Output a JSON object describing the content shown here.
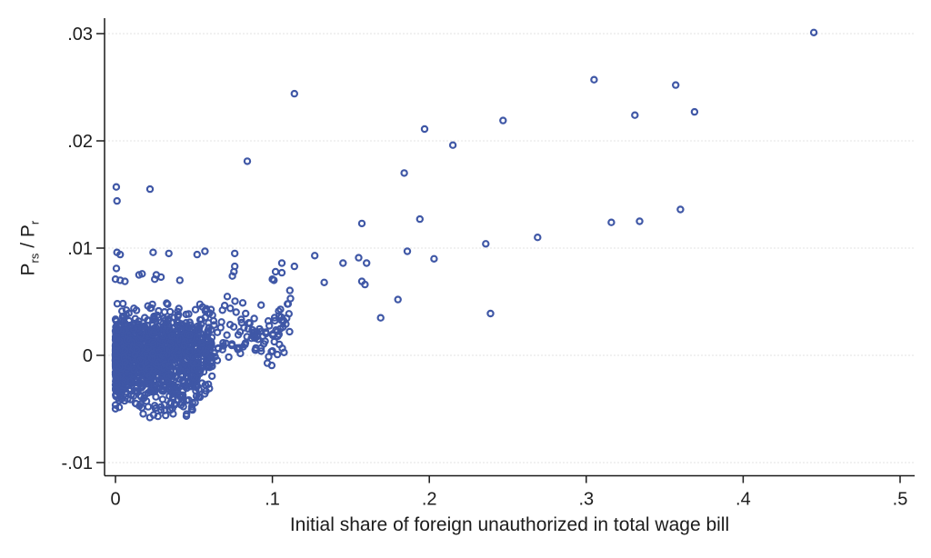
{
  "chart_data": {
    "type": "scatter",
    "title": "",
    "xlabel": "Initial share of foreign unauthorized in total wage bill",
    "ylabel": "P_rs / P_r",
    "ylabel_parts": {
      "p1": "P",
      "sub1": "rs",
      "mid": " / P",
      "sub2": "r"
    },
    "x_ticks": {
      "values": [
        0,
        0.1,
        0.2,
        0.3,
        0.4,
        0.5
      ],
      "labels": [
        "0",
        ".1",
        ".2",
        ".3",
        ".4",
        ".5"
      ]
    },
    "y_ticks": {
      "values": [
        -0.01,
        0,
        0.01,
        0.02,
        0.03
      ],
      "labels": [
        "-.01",
        "0",
        ".01",
        ".02",
        ".03"
      ]
    },
    "xlim": [
      -0.007,
      0.51
    ],
    "ylim": [
      -0.0112,
      0.0314
    ],
    "grid": true,
    "legend": "none",
    "marker": {
      "shape": "hollow-circle",
      "color": "#3f57a6",
      "radius": 3.1,
      "stroke_width": 2.2
    },
    "grid_color": "#e3e3e3",
    "axis_color": "#1a1a1a",
    "text_color": "#1c1c1c",
    "outlier_points": [
      [
        0.445,
        0.0301
      ],
      [
        0.305,
        0.0257
      ],
      [
        0.357,
        0.0252
      ],
      [
        0.331,
        0.0224
      ],
      [
        0.369,
        0.0227
      ],
      [
        0.114,
        0.0244
      ],
      [
        0.247,
        0.0219
      ],
      [
        0.197,
        0.0211
      ],
      [
        0.215,
        0.0196
      ],
      [
        0.084,
        0.0181
      ],
      [
        0.184,
        0.017
      ],
      [
        0.0005,
        0.0157
      ],
      [
        0.022,
        0.0155
      ],
      [
        0.001,
        0.0144
      ],
      [
        0.36,
        0.0136
      ],
      [
        0.316,
        0.0124
      ],
      [
        0.334,
        0.0125
      ],
      [
        0.194,
        0.0127
      ],
      [
        0.157,
        0.0123
      ],
      [
        0.269,
        0.011
      ],
      [
        0.236,
        0.0104
      ],
      [
        0.186,
        0.0097
      ],
      [
        0.203,
        0.009
      ],
      [
        0.001,
        0.0096
      ],
      [
        0.003,
        0.0094
      ],
      [
        0.024,
        0.0096
      ],
      [
        0.034,
        0.0095
      ],
      [
        0.052,
        0.0094
      ],
      [
        0.057,
        0.0097
      ],
      [
        0.076,
        0.0095
      ],
      [
        0.127,
        0.0093
      ],
      [
        0.145,
        0.0086
      ],
      [
        0.155,
        0.0091
      ],
      [
        0.16,
        0.0086
      ],
      [
        0.114,
        0.0083
      ],
      [
        0.106,
        0.0086
      ],
      [
        0.102,
        0.0078
      ],
      [
        0.106,
        0.0077
      ],
      [
        0.1,
        0.0071
      ],
      [
        0.101,
        0.007
      ],
      [
        0.133,
        0.0068
      ],
      [
        0.157,
        0.0069
      ],
      [
        0.159,
        0.0066
      ],
      [
        0.18,
        0.0052
      ],
      [
        0.169,
        0.0035
      ],
      [
        0.239,
        0.0039
      ],
      [
        0.0006,
        0.0081
      ],
      [
        0.0,
        0.0071
      ],
      [
        0.003,
        0.007
      ],
      [
        0.006,
        0.0069
      ],
      [
        0.015,
        0.0075
      ],
      [
        0.017,
        0.0076
      ],
      [
        0.025,
        0.0071
      ],
      [
        0.026,
        0.0075
      ],
      [
        0.029,
        0.0073
      ],
      [
        0.041,
        0.007
      ],
      [
        0.076,
        0.0083
      ],
      [
        0.0755,
        0.0078
      ],
      [
        0.0745,
        0.0074
      ],
      [
        0.11,
        0.0048
      ],
      [
        0.089,
        0.0016
      ],
      [
        0.0825,
        0.001
      ],
      [
        0.079,
        0.0007
      ],
      [
        0.029,
        -0.0051
      ],
      [
        0.032,
        -0.0056
      ],
      [
        0.035,
        -0.0051
      ],
      [
        0.042,
        -0.0044
      ],
      [
        0.026,
        -0.0049
      ]
    ],
    "dense_cluster": {
      "note": "Dense unreadable mass of ~1500 overlapping hollow markers near the origin; approximated procedurally with a seeded generator.",
      "seed": 42,
      "components": [
        {
          "count": 1150,
          "x_base": 0.0,
          "x_scale": 0.062,
          "x_power": 2.0,
          "y_mean": -0.0004,
          "y_slope": 0.012,
          "y_sd": 0.0019,
          "y_min": -0.0058,
          "y_max": 0.0052
        },
        {
          "count": 230,
          "x_base": 0.02,
          "x_scale": 0.092,
          "x_power": 1.4,
          "y_mean": 0.0003,
          "y_slope": 0.018,
          "y_sd": 0.0017,
          "y_min": -0.0038,
          "y_max": 0.0063
        },
        {
          "count": 70,
          "x_base": 0.012,
          "x_scale": 0.042,
          "x_power": 1.0,
          "y_mean": -0.0038,
          "y_slope": 0.0,
          "y_sd": 0.0011,
          "y_min": -0.0059,
          "y_max": -0.0015
        }
      ]
    }
  }
}
